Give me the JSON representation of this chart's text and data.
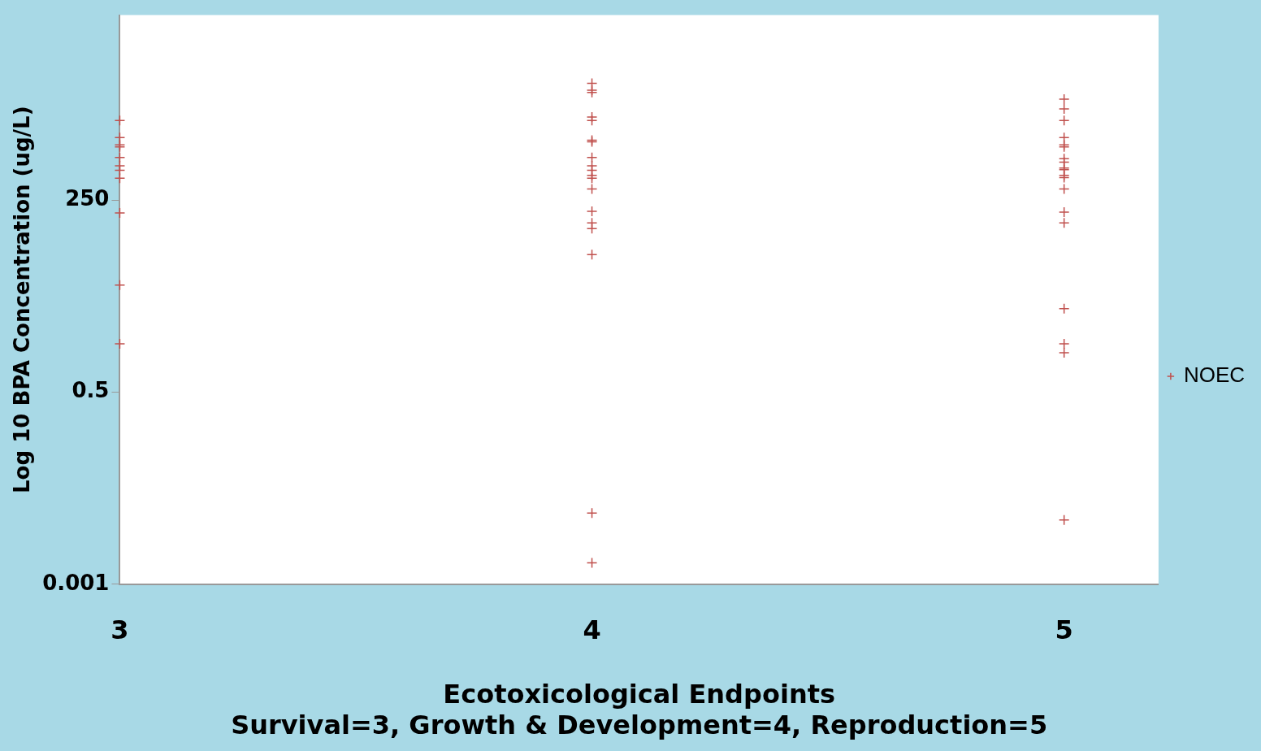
{
  "chart_data": {
    "type": "scatter",
    "xlabel": "Ecotoxicological Endpoints",
    "ylabel": "Log 10 BPA Concentration (ug/L)",
    "annotations": [
      "Survival=3, Growth & Development=4, Reproduction=5"
    ],
    "xlim": [
      3,
      5.2
    ],
    "xticks": [
      3,
      4,
      5
    ],
    "ylim": [
      0.001,
      100000
    ],
    "yticks": [
      0.001,
      0.5,
      250
    ],
    "log": "y",
    "grid": false,
    "legend": "right",
    "marker": "cross",
    "series": [
      {
        "name": "NOEC",
        "color": "#c0504d",
        "x": [
          3,
          3,
          3,
          3,
          3,
          3,
          3,
          3,
          3,
          3,
          3,
          4,
          4,
          4,
          4,
          4,
          4,
          4,
          4,
          4,
          4,
          4,
          4,
          4,
          4,
          4,
          4,
          4,
          4,
          4,
          5,
          5,
          5,
          5,
          5,
          5,
          5,
          5,
          5,
          5,
          5,
          5,
          5,
          5,
          5,
          5,
          5,
          5,
          5
        ],
        "values": [
          3300,
          1900,
          1500,
          1400,
          1000,
          760,
          660,
          510,
          166,
          16,
          2.4,
          11000,
          8800,
          8200,
          3700,
          3300,
          1750,
          1660,
          1000,
          760,
          660,
          560,
          510,
          360,
          175,
          120,
          100,
          43,
          0.01,
          0.002,
          6600,
          4800,
          3300,
          1900,
          1500,
          1400,
          960,
          860,
          710,
          670,
          560,
          520,
          360,
          170,
          120,
          7.5,
          2.4,
          1.8,
          0.008
        ]
      }
    ]
  }
}
